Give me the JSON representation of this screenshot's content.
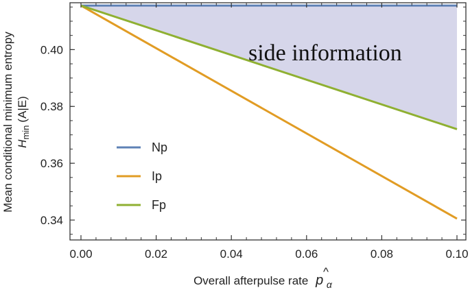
{
  "chart_data": {
    "type": "line",
    "title": "",
    "xlabel": "Overall afterpulse rate",
    "xlabel_symbol": "p",
    "xlabel_subscript": "α",
    "ylabel_line1": "Mean conditional minimum entropy",
    "ylabel_symbol": "H",
    "ylabel_subscript": "min",
    "ylabel_suffix": "(A|E)",
    "xlim": [
      0.0,
      0.1
    ],
    "ylim": [
      0.333,
      0.4165
    ],
    "xticks": [
      0.0,
      0.02,
      0.04,
      0.06,
      0.08,
      0.1
    ],
    "xtick_labels": [
      "0.00",
      "0.02",
      "0.04",
      "0.06",
      "0.08",
      "0.10"
    ],
    "yticks": [
      0.34,
      0.36,
      0.38,
      0.4
    ],
    "ytick_labels": [
      "0.34",
      "0.36",
      "0.38",
      "0.40"
    ],
    "grid": false,
    "legend_position": "bottom-left",
    "series": [
      {
        "name": "Np",
        "color": "#5e81b5",
        "x": [
          0.0,
          0.1
        ],
        "y": [
          0.4155,
          0.4155
        ]
      },
      {
        "name": "Ip",
        "color": "#e19c24",
        "x": [
          0.0,
          0.1
        ],
        "y": [
          0.4155,
          0.3405
        ]
      },
      {
        "name": "Fp",
        "color": "#8fb032",
        "x": [
          0.0,
          0.1
        ],
        "y": [
          0.4155,
          0.372
        ]
      }
    ],
    "shaded_region": {
      "between": [
        "Np",
        "Fp"
      ],
      "color": "#d6d6ea"
    },
    "annotation": "side information"
  }
}
